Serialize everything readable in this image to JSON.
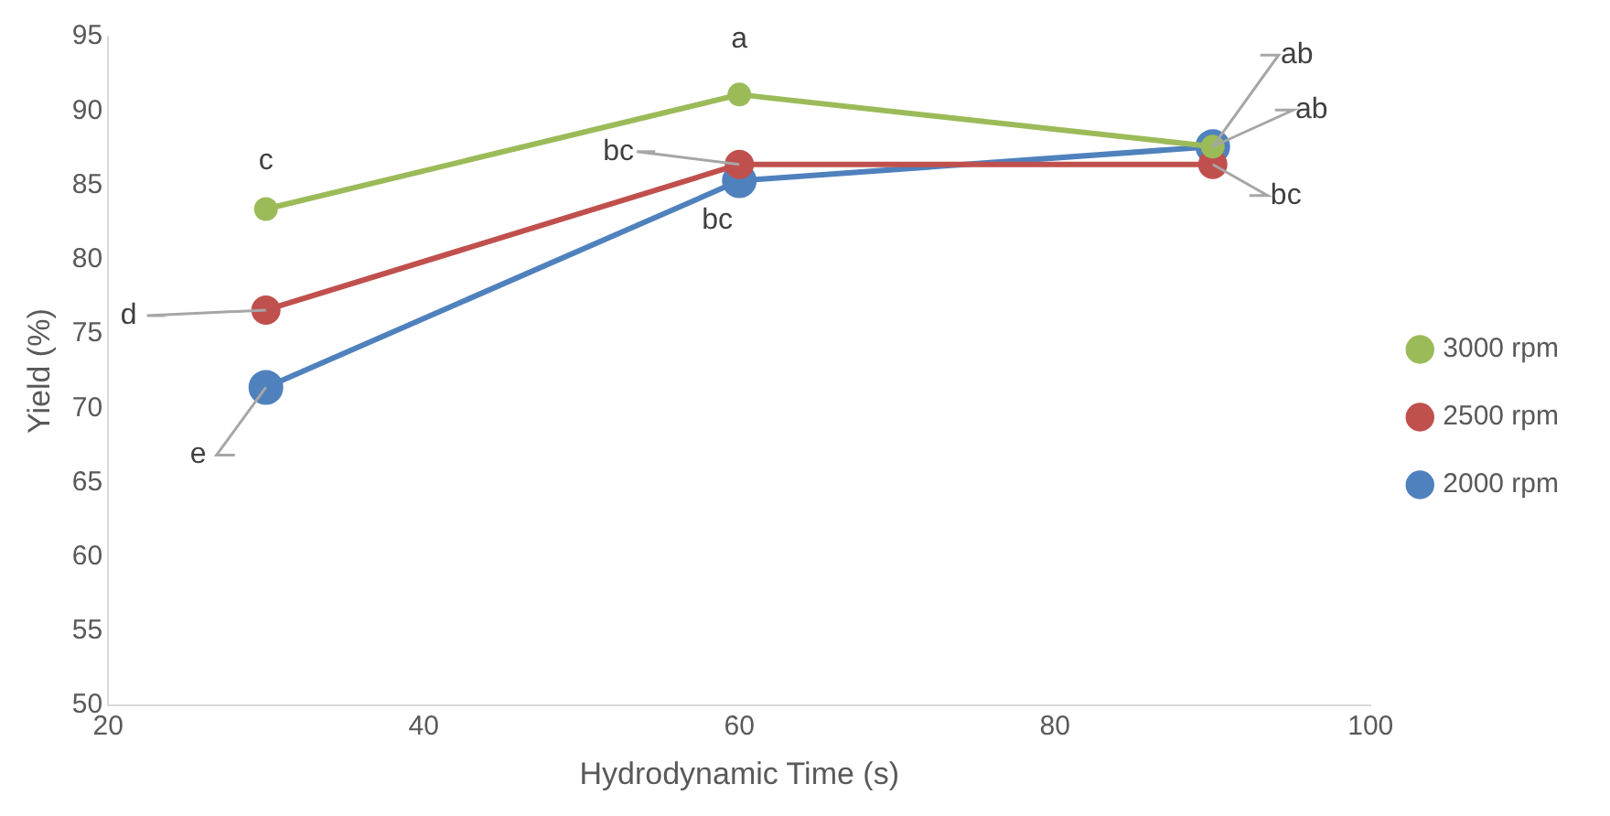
{
  "chart_data": {
    "type": "line",
    "xlabel": "Hydrodynamic Time (s)",
    "ylabel": "Yield (%)",
    "x": [
      30,
      60,
      90
    ],
    "xlim": [
      20,
      100
    ],
    "xticks": [
      20,
      40,
      60,
      80,
      100
    ],
    "ylim": [
      50,
      95
    ],
    "yticks": [
      50,
      55,
      60,
      65,
      70,
      75,
      80,
      85,
      90,
      95
    ],
    "grid": false,
    "legend": "right",
    "marker": "circle",
    "line_style": "solid",
    "series": [
      {
        "name": "2000 rpm",
        "color": "#4f81bd",
        "values": [
          71.4,
          85.3,
          87.6
        ]
      },
      {
        "name": "2500 rpm",
        "color": "#c0504d",
        "values": [
          76.6,
          86.4,
          86.4
        ]
      },
      {
        "name": "3000 rpm",
        "color": "#9bbb59",
        "values": [
          83.4,
          91.1,
          87.6
        ]
      }
    ],
    "annotations": [
      {
        "text": "c",
        "x": 30,
        "y": 83.4
      },
      {
        "text": "d",
        "x": 30,
        "y": 76.6
      },
      {
        "text": "e",
        "x": 30,
        "y": 71.4
      },
      {
        "text": "a",
        "x": 60,
        "y": 91.1
      },
      {
        "text": "bc",
        "x": 60,
        "y": 86.4
      },
      {
        "text": "bc",
        "x": 60,
        "y": 85.3
      },
      {
        "text": "ab",
        "x": 90,
        "y": 87.6
      },
      {
        "text": "ab",
        "x": 90,
        "y": 87.6
      },
      {
        "text": "bc",
        "x": 90,
        "y": 86.4
      }
    ]
  }
}
